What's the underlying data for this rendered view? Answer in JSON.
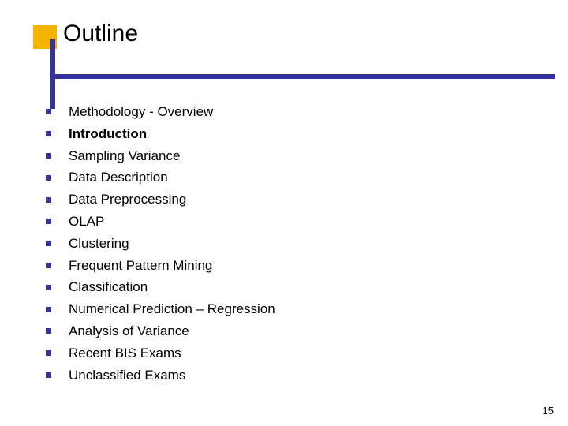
{
  "colors": {
    "accent_yellow": "#f4b400",
    "accent_blue": "#333399",
    "bullet_color": "#333399",
    "text_color": "#000000",
    "background": "#ffffff"
  },
  "typography": {
    "title_fontsize": 30,
    "item_fontsize": 17,
    "pageno_fontsize": 13,
    "font_family": "Verdana"
  },
  "title": "Outline",
  "items": [
    {
      "label": "Methodology - Overview",
      "bold": false
    },
    {
      "label": "Introduction",
      "bold": true
    },
    {
      "label": "Sampling Variance",
      "bold": false
    },
    {
      "label": "Data Description",
      "bold": false
    },
    {
      "label": "Data Preprocessing",
      "bold": false
    },
    {
      "label": "OLAP",
      "bold": false
    },
    {
      "label": "Clustering",
      "bold": false
    },
    {
      "label": "Frequent Pattern Mining",
      "bold": false
    },
    {
      "label": "Classification",
      "bold": false
    },
    {
      "label": "Numerical Prediction – Regression",
      "bold": false
    },
    {
      "label": "Analysis of Variance",
      "bold": false
    },
    {
      "label": "Recent BIS Exams",
      "bold": false
    },
    {
      "label": "Unclassified Exams",
      "bold": false
    }
  ],
  "page_number": "15"
}
